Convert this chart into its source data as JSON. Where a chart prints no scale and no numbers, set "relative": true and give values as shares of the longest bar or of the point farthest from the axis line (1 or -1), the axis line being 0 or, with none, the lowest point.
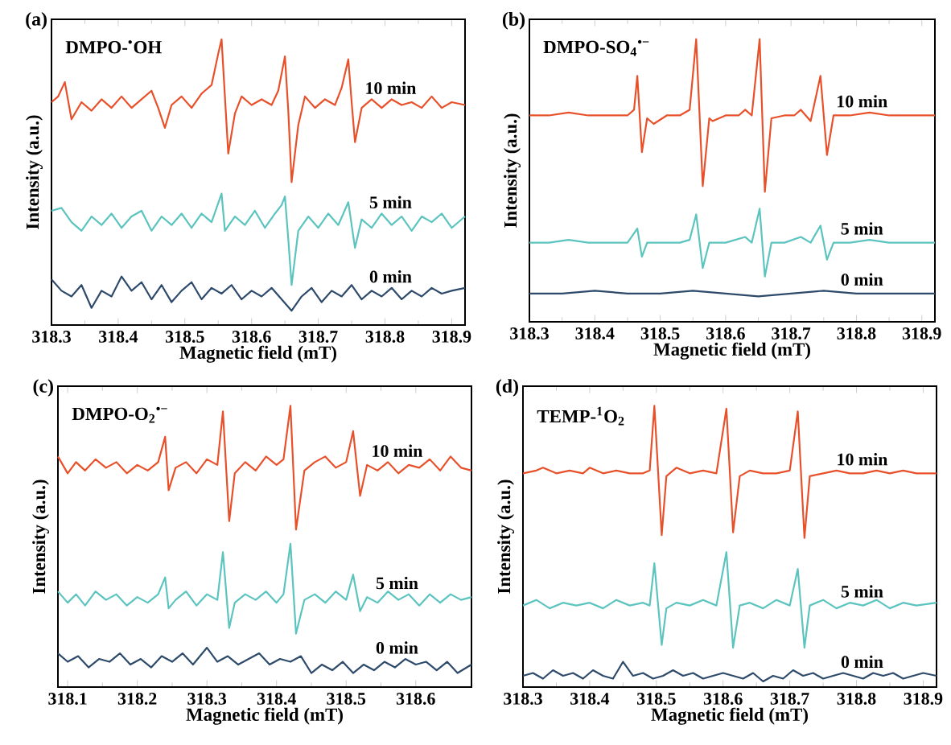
{
  "chart_data": [
    {
      "type": "line",
      "relative": true,
      "title": "(a)",
      "annotations": [
        "DMPO-$^{•}$OH"
      ],
      "xlabel": "Magnetic field (mT)",
      "ylabel": "Intensity (a.u.)",
      "xlim": [
        318.3,
        318.92
      ],
      "xticks": [
        318.3,
        318.4,
        318.5,
        318.6,
        318.7,
        318.8,
        318.9
      ],
      "series": [
        {
          "name": "10 min",
          "color": "#e8502a",
          "x": [
            318.3,
            318.31,
            318.32,
            318.33,
            318.345,
            318.36,
            318.375,
            318.39,
            318.405,
            318.42,
            318.435,
            318.45,
            318.46,
            318.47,
            318.48,
            318.495,
            318.51,
            318.525,
            318.54,
            318.55,
            318.555,
            318.56,
            318.565,
            318.575,
            318.585,
            318.6,
            318.615,
            318.63,
            318.64,
            318.65,
            318.655,
            318.66,
            318.67,
            318.68,
            318.695,
            318.71,
            318.725,
            318.735,
            318.745,
            318.75,
            318.755,
            318.765,
            318.78,
            318.795,
            318.81,
            318.825,
            318.84,
            318.855,
            318.87,
            318.885,
            318.9,
            318.92
          ],
          "values": [
            0.78,
            0.8,
            0.85,
            0.72,
            0.78,
            0.75,
            0.79,
            0.76,
            0.8,
            0.76,
            0.79,
            0.82,
            0.76,
            0.69,
            0.77,
            0.8,
            0.76,
            0.81,
            0.84,
            0.95,
            1.0,
            0.8,
            0.6,
            0.74,
            0.8,
            0.77,
            0.79,
            0.77,
            0.82,
            0.94,
            0.75,
            0.5,
            0.7,
            0.8,
            0.76,
            0.79,
            0.77,
            0.83,
            0.93,
            0.78,
            0.64,
            0.76,
            0.79,
            0.76,
            0.79,
            0.77,
            0.78,
            0.76,
            0.8,
            0.76,
            0.78,
            0.77
          ]
        },
        {
          "name": "5 min",
          "color": "#5bc4bf",
          "x": [
            318.3,
            318.315,
            318.33,
            318.345,
            318.36,
            318.375,
            318.39,
            318.405,
            318.42,
            318.435,
            318.45,
            318.465,
            318.48,
            318.495,
            318.51,
            318.525,
            318.54,
            318.555,
            318.56,
            318.575,
            318.59,
            318.605,
            318.62,
            318.635,
            318.645,
            318.65,
            318.655,
            318.66,
            318.67,
            318.685,
            318.7,
            318.715,
            318.73,
            318.745,
            318.755,
            318.765,
            318.78,
            318.795,
            318.81,
            318.825,
            318.84,
            318.855,
            318.87,
            318.885,
            318.9,
            318.92
          ],
          "values": [
            0.4,
            0.41,
            0.36,
            0.33,
            0.38,
            0.35,
            0.39,
            0.34,
            0.38,
            0.4,
            0.33,
            0.38,
            0.35,
            0.39,
            0.34,
            0.39,
            0.36,
            0.46,
            0.33,
            0.38,
            0.35,
            0.4,
            0.34,
            0.39,
            0.42,
            0.45,
            0.3,
            0.14,
            0.33,
            0.38,
            0.34,
            0.39,
            0.35,
            0.43,
            0.27,
            0.37,
            0.34,
            0.39,
            0.35,
            0.38,
            0.33,
            0.38,
            0.36,
            0.39,
            0.34,
            0.38
          ]
        },
        {
          "name": "0 min",
          "color": "#2e4a6b",
          "x": [
            318.3,
            318.315,
            318.33,
            318.345,
            318.36,
            318.375,
            318.39,
            318.405,
            318.42,
            318.435,
            318.45,
            318.465,
            318.48,
            318.495,
            318.51,
            318.525,
            318.54,
            318.555,
            318.57,
            318.585,
            318.6,
            318.615,
            318.63,
            318.645,
            318.66,
            318.675,
            318.69,
            318.705,
            318.72,
            318.735,
            318.75,
            318.765,
            318.78,
            318.795,
            318.81,
            318.825,
            318.84,
            318.855,
            318.87,
            318.885,
            318.9,
            318.92
          ],
          "values": [
            0.16,
            0.12,
            0.1,
            0.14,
            0.06,
            0.12,
            0.1,
            0.17,
            0.12,
            0.15,
            0.09,
            0.14,
            0.08,
            0.12,
            0.15,
            0.09,
            0.13,
            0.11,
            0.14,
            0.09,
            0.12,
            0.1,
            0.13,
            0.09,
            0.05,
            0.1,
            0.13,
            0.08,
            0.12,
            0.1,
            0.14,
            0.09,
            0.12,
            0.1,
            0.13,
            0.09,
            0.12,
            0.1,
            0.13,
            0.11,
            0.12,
            0.13
          ]
        }
      ]
    },
    {
      "type": "line",
      "relative": true,
      "title": "(b)",
      "annotations": [
        "DMPO-SO$_{4}$$^{•−}$"
      ],
      "xlabel": "Magnetic field (mT)",
      "ylabel": "Intensity (a.u.)",
      "xlim": [
        318.3,
        318.92
      ],
      "xticks": [
        318.3,
        318.4,
        318.5,
        318.6,
        318.7,
        318.8,
        318.9
      ],
      "series": [
        {
          "name": "10 min",
          "color": "#e8502a",
          "x": [
            318.3,
            318.33,
            318.36,
            318.39,
            318.42,
            318.45,
            318.46,
            318.465,
            318.472,
            318.48,
            318.49,
            318.51,
            318.53,
            318.545,
            318.555,
            318.565,
            318.575,
            318.58,
            318.6,
            318.62,
            318.63,
            318.64,
            318.652,
            318.66,
            318.67,
            318.69,
            318.705,
            318.715,
            318.73,
            318.745,
            318.755,
            318.765,
            318.79,
            318.82,
            318.85,
            318.88,
            318.92
          ],
          "values": [
            0.73,
            0.73,
            0.74,
            0.73,
            0.73,
            0.73,
            0.75,
            0.87,
            0.6,
            0.72,
            0.7,
            0.73,
            0.73,
            0.75,
            1.0,
            0.48,
            0.72,
            0.71,
            0.73,
            0.73,
            0.75,
            0.73,
            1.0,
            0.46,
            0.72,
            0.73,
            0.73,
            0.75,
            0.71,
            0.87,
            0.59,
            0.73,
            0.73,
            0.74,
            0.73,
            0.73,
            0.73
          ]
        },
        {
          "name": "5 min",
          "color": "#5bc4bf",
          "x": [
            318.3,
            318.33,
            318.36,
            318.39,
            318.42,
            318.45,
            318.465,
            318.472,
            318.48,
            318.51,
            318.53,
            318.545,
            318.555,
            318.565,
            318.575,
            318.6,
            318.63,
            318.64,
            318.652,
            318.66,
            318.67,
            318.69,
            318.715,
            318.73,
            318.745,
            318.755,
            318.765,
            318.79,
            318.82,
            318.85,
            318.88,
            318.92
          ],
          "values": [
            0.28,
            0.28,
            0.29,
            0.28,
            0.28,
            0.28,
            0.33,
            0.23,
            0.28,
            0.28,
            0.28,
            0.29,
            0.38,
            0.19,
            0.28,
            0.28,
            0.3,
            0.28,
            0.4,
            0.16,
            0.28,
            0.28,
            0.3,
            0.28,
            0.34,
            0.22,
            0.28,
            0.28,
            0.29,
            0.28,
            0.28,
            0.28
          ]
        },
        {
          "name": "0 min",
          "color": "#2e4a6b",
          "x": [
            318.3,
            318.35,
            318.4,
            318.45,
            318.5,
            318.55,
            318.6,
            318.65,
            318.7,
            318.75,
            318.8,
            318.85,
            318.92
          ],
          "values": [
            0.1,
            0.1,
            0.11,
            0.1,
            0.1,
            0.11,
            0.1,
            0.09,
            0.1,
            0.11,
            0.1,
            0.1,
            0.1
          ]
        }
      ]
    },
    {
      "type": "line",
      "relative": true,
      "title": "(c)",
      "annotations": [
        "DMPO-O$_{2}$$^{•−}$"
      ],
      "xlabel": "Magnetic field (mT)",
      "ylabel": "Intensity (a.u.)",
      "xlim": [
        318.086,
        318.68
      ],
      "xticks": [
        318.1,
        318.2,
        318.3,
        318.4,
        318.5,
        318.6
      ],
      "series": [
        {
          "name": "10 min",
          "color": "#e8502a",
          "x": [
            318.086,
            318.1,
            318.112,
            318.125,
            318.14,
            318.155,
            318.17,
            318.185,
            318.2,
            318.215,
            318.23,
            318.24,
            318.245,
            318.255,
            318.27,
            318.285,
            318.3,
            318.315,
            318.323,
            318.332,
            318.34,
            318.355,
            318.37,
            318.385,
            318.4,
            318.41,
            318.42,
            318.428,
            318.44,
            318.455,
            318.47,
            318.485,
            318.5,
            318.51,
            318.52,
            318.53,
            318.545,
            318.56,
            318.575,
            318.59,
            318.605,
            318.62,
            318.635,
            318.65,
            318.665,
            318.68
          ],
          "values": [
            0.82,
            0.76,
            0.8,
            0.77,
            0.81,
            0.78,
            0.8,
            0.76,
            0.79,
            0.77,
            0.8,
            0.89,
            0.7,
            0.78,
            0.8,
            0.76,
            0.81,
            0.79,
            0.98,
            0.59,
            0.76,
            0.8,
            0.77,
            0.82,
            0.79,
            0.81,
            1.0,
            0.56,
            0.77,
            0.8,
            0.82,
            0.78,
            0.8,
            0.91,
            0.68,
            0.79,
            0.77,
            0.8,
            0.76,
            0.79,
            0.78,
            0.81,
            0.77,
            0.82,
            0.78,
            0.77
          ]
        },
        {
          "name": "5 min",
          "color": "#5bc4bf",
          "x": [
            318.086,
            318.1,
            318.112,
            318.125,
            318.14,
            318.155,
            318.17,
            318.185,
            318.2,
            318.215,
            318.23,
            318.24,
            318.245,
            318.255,
            318.27,
            318.285,
            318.3,
            318.315,
            318.323,
            318.332,
            318.34,
            318.355,
            318.37,
            318.385,
            318.4,
            318.41,
            318.42,
            318.428,
            318.44,
            318.455,
            318.47,
            318.485,
            318.5,
            318.51,
            318.52,
            318.53,
            318.545,
            318.56,
            318.575,
            318.59,
            318.605,
            318.62,
            318.635,
            318.65,
            318.665,
            318.68
          ],
          "values": [
            0.34,
            0.3,
            0.33,
            0.29,
            0.34,
            0.31,
            0.33,
            0.29,
            0.32,
            0.3,
            0.33,
            0.39,
            0.28,
            0.31,
            0.34,
            0.29,
            0.33,
            0.31,
            0.48,
            0.21,
            0.3,
            0.33,
            0.31,
            0.34,
            0.3,
            0.33,
            0.51,
            0.19,
            0.31,
            0.33,
            0.3,
            0.34,
            0.31,
            0.4,
            0.27,
            0.32,
            0.3,
            0.34,
            0.31,
            0.33,
            0.29,
            0.33,
            0.3,
            0.33,
            0.31,
            0.32
          ]
        },
        {
          "name": "0 min",
          "color": "#2e4a6b",
          "x": [
            318.086,
            318.1,
            318.115,
            318.13,
            318.145,
            318.16,
            318.175,
            318.19,
            318.205,
            318.22,
            318.235,
            318.25,
            318.265,
            318.28,
            318.3,
            318.315,
            318.33,
            318.345,
            318.36,
            318.375,
            318.39,
            318.405,
            318.42,
            318.435,
            318.45,
            318.465,
            318.48,
            318.495,
            318.51,
            318.525,
            318.54,
            318.555,
            318.57,
            318.585,
            318.6,
            318.615,
            318.63,
            318.645,
            318.66,
            318.68
          ],
          "values": [
            0.12,
            0.09,
            0.11,
            0.07,
            0.1,
            0.09,
            0.12,
            0.08,
            0.1,
            0.07,
            0.11,
            0.09,
            0.12,
            0.08,
            0.14,
            0.09,
            0.11,
            0.08,
            0.1,
            0.12,
            0.08,
            0.1,
            0.09,
            0.11,
            0.05,
            0.08,
            0.06,
            0.09,
            0.05,
            0.08,
            0.06,
            0.09,
            0.07,
            0.1,
            0.08,
            0.09,
            0.06,
            0.09,
            0.05,
            0.08
          ]
        }
      ]
    },
    {
      "type": "line",
      "relative": true,
      "title": "(d)",
      "annotations": [
        "TEMP-$^{1}$O$_{2}$"
      ],
      "xlabel": "Magnetic field (mT)",
      "ylabel": "Intensity (a.u.)",
      "xlim": [
        318.3,
        318.92
      ],
      "xticks": [
        318.3,
        318.4,
        318.5,
        318.6,
        318.7,
        318.8,
        318.9
      ],
      "series": [
        {
          "name": "10 min",
          "color": "#e8502a",
          "x": [
            318.3,
            318.32,
            318.33,
            318.35,
            318.37,
            318.39,
            318.4,
            318.42,
            318.44,
            318.46,
            318.48,
            318.49,
            318.497,
            318.508,
            318.515,
            318.53,
            318.55,
            318.57,
            318.59,
            318.605,
            318.615,
            318.625,
            318.64,
            318.66,
            318.68,
            318.7,
            318.712,
            318.722,
            318.73,
            318.75,
            318.77,
            318.79,
            318.81,
            318.83,
            318.85,
            318.87,
            318.89,
            318.92
          ],
          "values": [
            0.76,
            0.77,
            0.78,
            0.76,
            0.77,
            0.76,
            0.78,
            0.76,
            0.77,
            0.76,
            0.76,
            0.77,
            1.0,
            0.54,
            0.75,
            0.78,
            0.76,
            0.77,
            0.76,
            0.99,
            0.55,
            0.75,
            0.77,
            0.76,
            0.76,
            0.77,
            0.98,
            0.53,
            0.75,
            0.76,
            0.77,
            0.76,
            0.76,
            0.77,
            0.76,
            0.77,
            0.76,
            0.76
          ]
        },
        {
          "name": "5 min",
          "color": "#5bc4bf",
          "x": [
            318.3,
            318.32,
            318.34,
            318.36,
            318.38,
            318.4,
            318.42,
            318.44,
            318.46,
            318.48,
            318.49,
            318.497,
            318.508,
            318.515,
            318.53,
            318.55,
            318.57,
            318.59,
            318.605,
            318.615,
            318.625,
            318.64,
            318.66,
            318.68,
            318.7,
            318.712,
            318.722,
            318.73,
            318.75,
            318.77,
            318.79,
            318.81,
            318.83,
            318.85,
            318.87,
            318.89,
            318.92
          ],
          "values": [
            0.29,
            0.31,
            0.28,
            0.3,
            0.29,
            0.3,
            0.28,
            0.31,
            0.29,
            0.3,
            0.29,
            0.44,
            0.15,
            0.28,
            0.3,
            0.29,
            0.31,
            0.29,
            0.48,
            0.14,
            0.29,
            0.3,
            0.28,
            0.31,
            0.29,
            0.42,
            0.14,
            0.29,
            0.31,
            0.28,
            0.3,
            0.29,
            0.31,
            0.28,
            0.3,
            0.29,
            0.3
          ]
        },
        {
          "name": "0 min",
          "color": "#2e4a6b",
          "x": [
            318.3,
            318.315,
            318.33,
            318.345,
            318.36,
            318.375,
            318.39,
            318.405,
            318.42,
            318.435,
            318.45,
            318.465,
            318.48,
            318.495,
            318.51,
            318.525,
            318.54,
            318.555,
            318.57,
            318.585,
            318.6,
            318.615,
            318.63,
            318.645,
            318.66,
            318.675,
            318.69,
            318.705,
            318.72,
            318.735,
            318.75,
            318.765,
            318.78,
            318.795,
            318.81,
            318.825,
            318.84,
            318.855,
            318.87,
            318.885,
            318.9,
            318.92
          ],
          "values": [
            0.04,
            0.05,
            0.03,
            0.06,
            0.04,
            0.05,
            0.03,
            0.06,
            0.04,
            0.03,
            0.09,
            0.04,
            0.05,
            0.03,
            0.04,
            0.06,
            0.04,
            0.05,
            0.03,
            0.04,
            0.05,
            0.04,
            0.03,
            0.05,
            0.02,
            0.04,
            0.03,
            0.06,
            0.04,
            0.05,
            0.03,
            0.04,
            0.05,
            0.04,
            0.03,
            0.05,
            0.04,
            0.05,
            0.03,
            0.04,
            0.05,
            0.04
          ]
        }
      ]
    }
  ]
}
